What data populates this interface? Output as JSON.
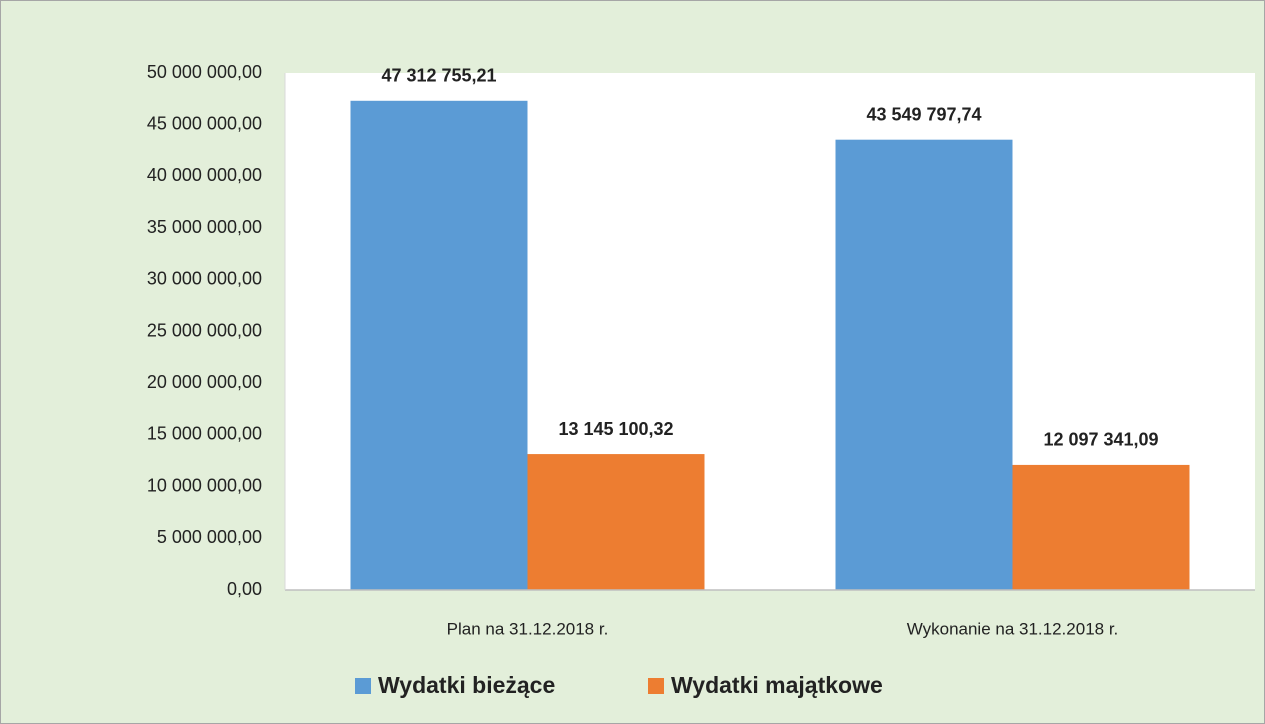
{
  "chart_data": {
    "type": "bar",
    "categories": [
      "Plan na 31.12.2018 r.",
      "Wykonanie na 31.12.2018 r."
    ],
    "series": [
      {
        "name": "Wydatki bieżące",
        "color": "#5b9bd5",
        "values": [
          47312755.21,
          43549797.74
        ],
        "value_labels": [
          "47 312 755,21",
          "43 549 797,74"
        ]
      },
      {
        "name": "Wydatki majątkowe",
        "color": "#ed7d31",
        "values": [
          13145100.32,
          12097341.09
        ],
        "value_labels": [
          "13 145 100,32",
          "12 097 341,09"
        ]
      }
    ],
    "ylim": [
      0,
      50000000
    ],
    "yticks": [
      {
        "value": 0,
        "label": "0,00"
      },
      {
        "value": 5000000,
        "label": "5 000 000,00"
      },
      {
        "value": 10000000,
        "label": "10 000 000,00"
      },
      {
        "value": 15000000,
        "label": "15 000 000,00"
      },
      {
        "value": 20000000,
        "label": "20 000 000,00"
      },
      {
        "value": 25000000,
        "label": "25 000 000,00"
      },
      {
        "value": 30000000,
        "label": "30 000 000,00"
      },
      {
        "value": 35000000,
        "label": "35 000 000,00"
      },
      {
        "value": 40000000,
        "label": "40 000 000,00"
      },
      {
        "value": 45000000,
        "label": "45 000 000,00"
      },
      {
        "value": 50000000,
        "label": "50 000 000,00"
      }
    ],
    "grid": false,
    "legend": "bottom"
  }
}
